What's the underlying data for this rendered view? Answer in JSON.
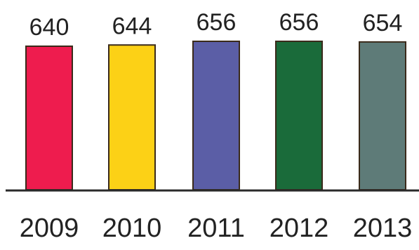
{
  "chart_data": {
    "type": "bar",
    "categories": [
      "2009",
      "2010",
      "2011",
      "2012",
      "2013"
    ],
    "values": [
      640,
      644,
      656,
      656,
      654
    ],
    "value_labels": [
      "640",
      "644",
      "656",
      "656",
      "654"
    ],
    "colors": [
      "#ee1c4e",
      "#fcd116",
      "#5b5ea6",
      "#1a6b3a",
      "#5e7b78"
    ],
    "bar_border_color": "#3a2a1a",
    "baseline_color": "#2a2a2a",
    "title": "",
    "xlabel": "",
    "ylabel": "",
    "axis_break": true,
    "grid": false,
    "legend": "none"
  }
}
